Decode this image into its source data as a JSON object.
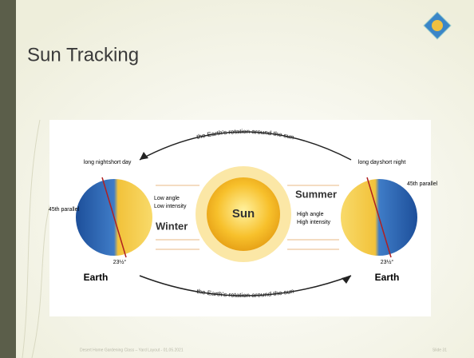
{
  "slide": {
    "title": "Sun Tracking",
    "footer": "Desert Home Gardening Class – Yard Layout - 01.05.2021",
    "slide_number": "Slide 31"
  },
  "diagram": {
    "top_arc": "the Earth's rotation around the sun",
    "bottom_arc": "the Earth's rotation around the sun",
    "sun": "Sun",
    "winter": {
      "season": "Winter",
      "angle": "Low angle",
      "intensity": "Low intensity",
      "earth": "Earth",
      "night": "long night",
      "day": "short day",
      "parallel": "45th parallel",
      "tilt": "23½°"
    },
    "summer": {
      "season": "Summer",
      "angle": "High angle",
      "intensity": "High intensity",
      "earth": "Earth",
      "day": "long day",
      "night": "short night",
      "parallel": "45th parallel",
      "tilt": "23½°"
    }
  }
}
